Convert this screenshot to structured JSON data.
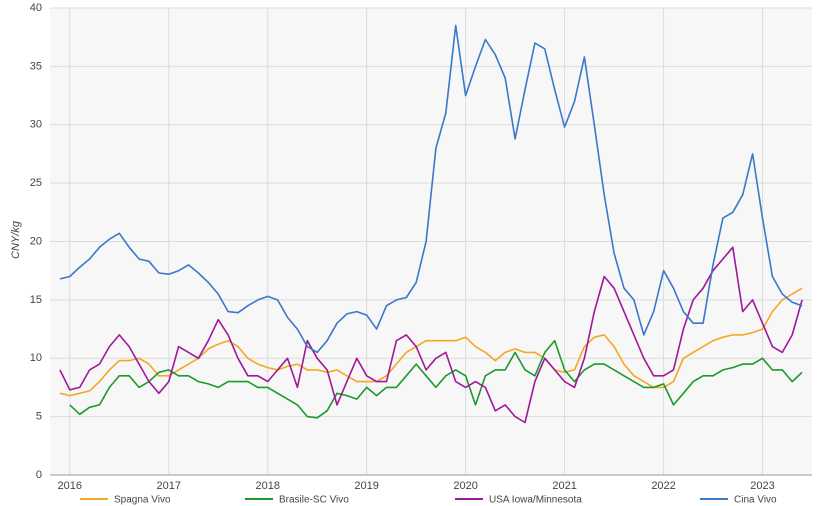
{
  "chart_data": {
    "type": "line",
    "y_label": "CNY/kg",
    "x": [
      2015.9,
      2016.0,
      2016.1,
      2016.2,
      2016.3,
      2016.4,
      2016.5,
      2016.6,
      2016.7,
      2016.8,
      2016.9,
      2017.0,
      2017.1,
      2017.2,
      2017.3,
      2017.4,
      2017.5,
      2017.6,
      2017.7,
      2017.8,
      2017.9,
      2018.0,
      2018.1,
      2018.2,
      2018.3,
      2018.4,
      2018.5,
      2018.6,
      2018.7,
      2018.8,
      2018.9,
      2019.0,
      2019.1,
      2019.2,
      2019.3,
      2019.4,
      2019.5,
      2019.6,
      2019.7,
      2019.8,
      2019.9,
      2020.0,
      2020.1,
      2020.2,
      2020.3,
      2020.4,
      2020.5,
      2020.6,
      2020.7,
      2020.8,
      2020.9,
      2021.0,
      2021.1,
      2021.2,
      2021.3,
      2021.4,
      2021.5,
      2021.6,
      2021.7,
      2021.8,
      2021.9,
      2022.0,
      2022.1,
      2022.2,
      2022.3,
      2022.4,
      2022.5,
      2022.6,
      2022.7,
      2022.8,
      2022.9,
      2023.0,
      2023.1,
      2023.2,
      2023.3,
      2023.4
    ],
    "series": [
      {
        "name": "Spagna Vivo",
        "color": "#f5a623",
        "values": [
          7,
          6.8,
          7,
          7.2,
          8,
          9,
          9.8,
          9.8,
          10,
          9.5,
          8.5,
          8.5,
          9,
          9.5,
          10,
          10.8,
          11.2,
          11.5,
          11,
          10,
          9.5,
          9.2,
          9,
          9.3,
          9.5,
          9,
          9,
          8.8,
          9,
          8.5,
          8,
          8,
          8,
          8.5,
          9.5,
          10.5,
          11,
          11.5,
          11.5,
          11.5,
          11.5,
          11.8,
          11,
          10.5,
          9.8,
          10.5,
          10.8,
          10.5,
          10.5,
          10,
          9,
          8.8,
          9,
          11,
          11.8,
          12,
          11,
          9.5,
          8.5,
          8,
          7.5,
          7.5,
          8,
          10,
          10.5,
          11,
          11.5,
          11.8,
          12,
          12,
          12.2,
          12.5,
          14,
          15,
          15.5,
          16
        ]
      },
      {
        "name": "Brasile-SC Vivo",
        "color": "#1a9a2a",
        "values": [
          null,
          6,
          5.2,
          5.8,
          6,
          7.5,
          8.5,
          8.5,
          7.5,
          8,
          8.8,
          9,
          8.5,
          8.5,
          8,
          7.8,
          7.5,
          8,
          8,
          8,
          7.5,
          7.5,
          7,
          6.5,
          6,
          5,
          4.9,
          5.5,
          7,
          6.8,
          6.5,
          7.5,
          6.8,
          7.5,
          7.5,
          8.5,
          9.5,
          8.5,
          7.5,
          8.5,
          9,
          8.5,
          6,
          8.5,
          9,
          9,
          10.5,
          9,
          8.5,
          10.5,
          11.5,
          9,
          8,
          9,
          9.5,
          9.5,
          9,
          8.5,
          8,
          7.5,
          7.5,
          7.8,
          6,
          7,
          8,
          8.5,
          8.5,
          9,
          9.2,
          9.5,
          9.5,
          10,
          9,
          9,
          8,
          8.8
        ]
      },
      {
        "name": "USA Iowa/Minnesota",
        "color": "#a0189a",
        "values": [
          9,
          7.3,
          7.5,
          9,
          9.5,
          11,
          12,
          11,
          9.5,
          8,
          7,
          8,
          11,
          10.5,
          10,
          11.5,
          13.3,
          12,
          10,
          8.5,
          8.5,
          8,
          9,
          10,
          7.5,
          11.5,
          10,
          9,
          6,
          8,
          10,
          8.5,
          8,
          8,
          11.5,
          12,
          11,
          9,
          10,
          10.5,
          8,
          7.5,
          8,
          7.5,
          5.5,
          6,
          5,
          4.5,
          8,
          10,
          9,
          8,
          7.5,
          10,
          14,
          17,
          16,
          14,
          12,
          10,
          8.5,
          8.5,
          9,
          12.5,
          15,
          16,
          17.5,
          18.5,
          19.5,
          14,
          15,
          13,
          11,
          10.5,
          12,
          15
        ]
      },
      {
        "name": "Cina Vivo",
        "color": "#3a78c8",
        "values": [
          16.8,
          17,
          17.8,
          18.5,
          19.5,
          20.2,
          20.7,
          19.5,
          18.5,
          18.3,
          17.3,
          17.2,
          17.5,
          18,
          17.3,
          16.5,
          15.5,
          14,
          13.9,
          14.5,
          15,
          15.3,
          15,
          13.5,
          12.5,
          11,
          10.5,
          11.5,
          13,
          13.8,
          14,
          13.7,
          12.5,
          14.5,
          15,
          15.2,
          16.5,
          20,
          28,
          31,
          38.5,
          32.5,
          35,
          37.3,
          36,
          34,
          28.8,
          33,
          37,
          36.5,
          33,
          29.8,
          32,
          35.8,
          30,
          24,
          19,
          16,
          15,
          12,
          14,
          17.5,
          16,
          14,
          13,
          13,
          18,
          22,
          22.5,
          24,
          27.5,
          22,
          17,
          15.5,
          14.8,
          14.5
        ]
      }
    ],
    "xlim": [
      2015.8,
      2023.5
    ],
    "xticks": [
      2016,
      2017,
      2018,
      2019,
      2020,
      2021,
      2022,
      2023
    ],
    "ylim": [
      0,
      40
    ],
    "yticks": [
      0,
      5,
      10,
      15,
      20,
      25,
      30,
      35,
      40
    ],
    "grid": true,
    "legend": "bottom"
  }
}
